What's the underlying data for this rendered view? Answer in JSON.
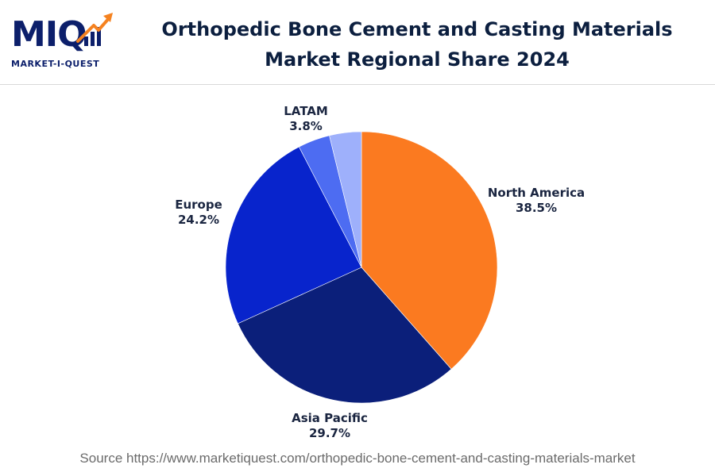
{
  "brand": {
    "mark": "MIQ",
    "name": "MARKET-I-QUEST",
    "color": "#0c1f6b",
    "accent": "#f58220"
  },
  "chart_data": {
    "type": "pie",
    "title_lines": [
      "Orthopedic Bone Cement and Casting Materials",
      "Market Regional Share 2024"
    ],
    "slices": [
      {
        "label": "North America",
        "value": 38.5,
        "display": "38.5%",
        "color": "#fb7a20"
      },
      {
        "label": "Asia Pacific",
        "value": 29.7,
        "display": "29.7%",
        "color": "#0b1f7a"
      },
      {
        "label": "Europe",
        "value": 24.2,
        "display": "24.2%",
        "color": "#0824cc"
      },
      {
        "label": "",
        "value": 3.8,
        "display": "",
        "color": "#4d6cf2"
      },
      {
        "label": "LATAM",
        "value": 3.8,
        "display": "3.8%",
        "color": "#9eb0fb"
      }
    ],
    "start_angle_deg": 0,
    "direction": "clockwise"
  },
  "source": "Source https://www.marketiquest.com/orthopedic-bone-cement-and-casting-materials-market"
}
